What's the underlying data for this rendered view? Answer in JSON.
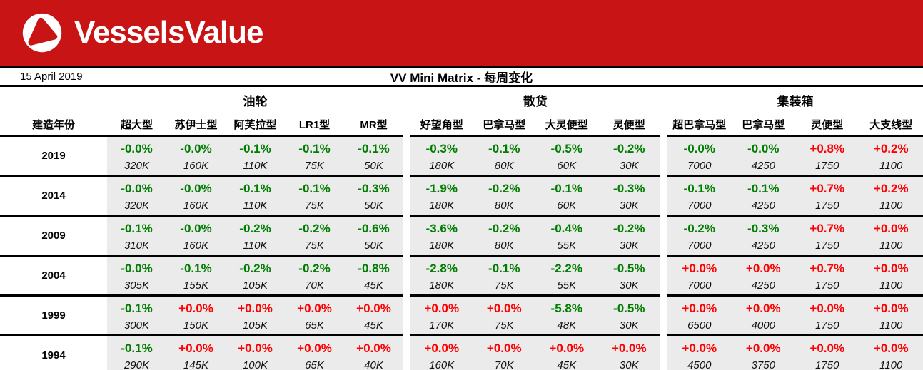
{
  "brand": {
    "logo_text": "VesselsValue",
    "banner_color": "#C81414"
  },
  "header": {
    "date": "15 April 2019",
    "title": "VV Mini Matrix - 每周变化"
  },
  "colors": {
    "up": "#FF0000",
    "down": "#007D00",
    "cell_bg": "#EBEBEB"
  },
  "table": {
    "year_header": "建造年份",
    "groups": [
      {
        "label": "油轮",
        "columns": [
          "超大型",
          "苏伊士型",
          "阿芙拉型",
          "LR1型",
          "MR型"
        ]
      },
      {
        "label": "散货",
        "columns": [
          "好望角型",
          "巴拿马型",
          "大灵便型",
          "灵便型"
        ]
      },
      {
        "label": "集装箱",
        "columns": [
          "超巴拿马型",
          "巴拿马型",
          "灵便型",
          "大支线型"
        ]
      }
    ],
    "rows": [
      {
        "year": "2019",
        "cells": [
          [
            {
              "pct": "-0.0%",
              "size": "320K",
              "dir": "down"
            },
            {
              "pct": "-0.0%",
              "size": "160K",
              "dir": "down"
            },
            {
              "pct": "-0.1%",
              "size": "110K",
              "dir": "down"
            },
            {
              "pct": "-0.1%",
              "size": "75K",
              "dir": "down"
            },
            {
              "pct": "-0.1%",
              "size": "50K",
              "dir": "down"
            }
          ],
          [
            {
              "pct": "-0.3%",
              "size": "180K",
              "dir": "down"
            },
            {
              "pct": "-0.1%",
              "size": "80K",
              "dir": "down"
            },
            {
              "pct": "-0.5%",
              "size": "60K",
              "dir": "down"
            },
            {
              "pct": "-0.2%",
              "size": "30K",
              "dir": "down"
            }
          ],
          [
            {
              "pct": "-0.0%",
              "size": "7000",
              "dir": "down"
            },
            {
              "pct": "-0.0%",
              "size": "4250",
              "dir": "down"
            },
            {
              "pct": "+0.8%",
              "size": "1750",
              "dir": "up"
            },
            {
              "pct": "+0.2%",
              "size": "1100",
              "dir": "up"
            }
          ]
        ]
      },
      {
        "year": "2014",
        "cells": [
          [
            {
              "pct": "-0.0%",
              "size": "320K",
              "dir": "down"
            },
            {
              "pct": "-0.0%",
              "size": "160K",
              "dir": "down"
            },
            {
              "pct": "-0.1%",
              "size": "110K",
              "dir": "down"
            },
            {
              "pct": "-0.1%",
              "size": "75K",
              "dir": "down"
            },
            {
              "pct": "-0.3%",
              "size": "50K",
              "dir": "down"
            }
          ],
          [
            {
              "pct": "-1.9%",
              "size": "180K",
              "dir": "down"
            },
            {
              "pct": "-0.2%",
              "size": "80K",
              "dir": "down"
            },
            {
              "pct": "-0.1%",
              "size": "60K",
              "dir": "down"
            },
            {
              "pct": "-0.3%",
              "size": "30K",
              "dir": "down"
            }
          ],
          [
            {
              "pct": "-0.1%",
              "size": "7000",
              "dir": "down"
            },
            {
              "pct": "-0.1%",
              "size": "4250",
              "dir": "down"
            },
            {
              "pct": "+0.7%",
              "size": "1750",
              "dir": "up"
            },
            {
              "pct": "+0.2%",
              "size": "1100",
              "dir": "up"
            }
          ]
        ]
      },
      {
        "year": "2009",
        "cells": [
          [
            {
              "pct": "-0.1%",
              "size": "310K",
              "dir": "down"
            },
            {
              "pct": "-0.0%",
              "size": "160K",
              "dir": "down"
            },
            {
              "pct": "-0.2%",
              "size": "110K",
              "dir": "down"
            },
            {
              "pct": "-0.2%",
              "size": "75K",
              "dir": "down"
            },
            {
              "pct": "-0.6%",
              "size": "50K",
              "dir": "down"
            }
          ],
          [
            {
              "pct": "-3.6%",
              "size": "180K",
              "dir": "down"
            },
            {
              "pct": "-0.2%",
              "size": "80K",
              "dir": "down"
            },
            {
              "pct": "-0.4%",
              "size": "55K",
              "dir": "down"
            },
            {
              "pct": "-0.2%",
              "size": "30K",
              "dir": "down"
            }
          ],
          [
            {
              "pct": "-0.2%",
              "size": "7000",
              "dir": "down"
            },
            {
              "pct": "-0.3%",
              "size": "4250",
              "dir": "down"
            },
            {
              "pct": "+0.7%",
              "size": "1750",
              "dir": "up"
            },
            {
              "pct": "+0.0%",
              "size": "1100",
              "dir": "up"
            }
          ]
        ]
      },
      {
        "year": "2004",
        "cells": [
          [
            {
              "pct": "-0.0%",
              "size": "305K",
              "dir": "down"
            },
            {
              "pct": "-0.1%",
              "size": "155K",
              "dir": "down"
            },
            {
              "pct": "-0.2%",
              "size": "105K",
              "dir": "down"
            },
            {
              "pct": "-0.2%",
              "size": "70K",
              "dir": "down"
            },
            {
              "pct": "-0.8%",
              "size": "45K",
              "dir": "down"
            }
          ],
          [
            {
              "pct": "-2.8%",
              "size": "180K",
              "dir": "down"
            },
            {
              "pct": "-0.1%",
              "size": "75K",
              "dir": "down"
            },
            {
              "pct": "-2.2%",
              "size": "55K",
              "dir": "down"
            },
            {
              "pct": "-0.5%",
              "size": "30K",
              "dir": "down"
            }
          ],
          [
            {
              "pct": "+0.0%",
              "size": "7000",
              "dir": "up"
            },
            {
              "pct": "+0.0%",
              "size": "4250",
              "dir": "up"
            },
            {
              "pct": "+0.7%",
              "size": "1750",
              "dir": "up"
            },
            {
              "pct": "+0.0%",
              "size": "1100",
              "dir": "up"
            }
          ]
        ]
      },
      {
        "year": "1999",
        "cells": [
          [
            {
              "pct": "-0.1%",
              "size": "300K",
              "dir": "down"
            },
            {
              "pct": "+0.0%",
              "size": "150K",
              "dir": "up"
            },
            {
              "pct": "+0.0%",
              "size": "105K",
              "dir": "up"
            },
            {
              "pct": "+0.0%",
              "size": "65K",
              "dir": "up"
            },
            {
              "pct": "+0.0%",
              "size": "45K",
              "dir": "up"
            }
          ],
          [
            {
              "pct": "+0.0%",
              "size": "170K",
              "dir": "up"
            },
            {
              "pct": "+0.0%",
              "size": "75K",
              "dir": "up"
            },
            {
              "pct": "-5.8%",
              "size": "48K",
              "dir": "down"
            },
            {
              "pct": "-0.5%",
              "size": "30K",
              "dir": "down"
            }
          ],
          [
            {
              "pct": "+0.0%",
              "size": "6500",
              "dir": "up"
            },
            {
              "pct": "+0.0%",
              "size": "4000",
              "dir": "up"
            },
            {
              "pct": "+0.0%",
              "size": "1750",
              "dir": "up"
            },
            {
              "pct": "+0.0%",
              "size": "1100",
              "dir": "up"
            }
          ]
        ]
      },
      {
        "year": "1994",
        "cells": [
          [
            {
              "pct": "-0.1%",
              "size": "290K",
              "dir": "down"
            },
            {
              "pct": "+0.0%",
              "size": "145K",
              "dir": "up"
            },
            {
              "pct": "+0.0%",
              "size": "100K",
              "dir": "up"
            },
            {
              "pct": "+0.0%",
              "size": "65K",
              "dir": "up"
            },
            {
              "pct": "+0.0%",
              "size": "40K",
              "dir": "up"
            }
          ],
          [
            {
              "pct": "+0.0%",
              "size": "160K",
              "dir": "up"
            },
            {
              "pct": "+0.0%",
              "size": "70K",
              "dir": "up"
            },
            {
              "pct": "+0.0%",
              "size": "45K",
              "dir": "up"
            },
            {
              "pct": "+0.0%",
              "size": "30K",
              "dir": "up"
            }
          ],
          [
            {
              "pct": "+0.0%",
              "size": "4500",
              "dir": "up"
            },
            {
              "pct": "+0.0%",
              "size": "3750",
              "dir": "up"
            },
            {
              "pct": "+0.0%",
              "size": "1750",
              "dir": "up"
            },
            {
              "pct": "+0.0%",
              "size": "1100",
              "dir": "up"
            }
          ]
        ]
      }
    ]
  }
}
